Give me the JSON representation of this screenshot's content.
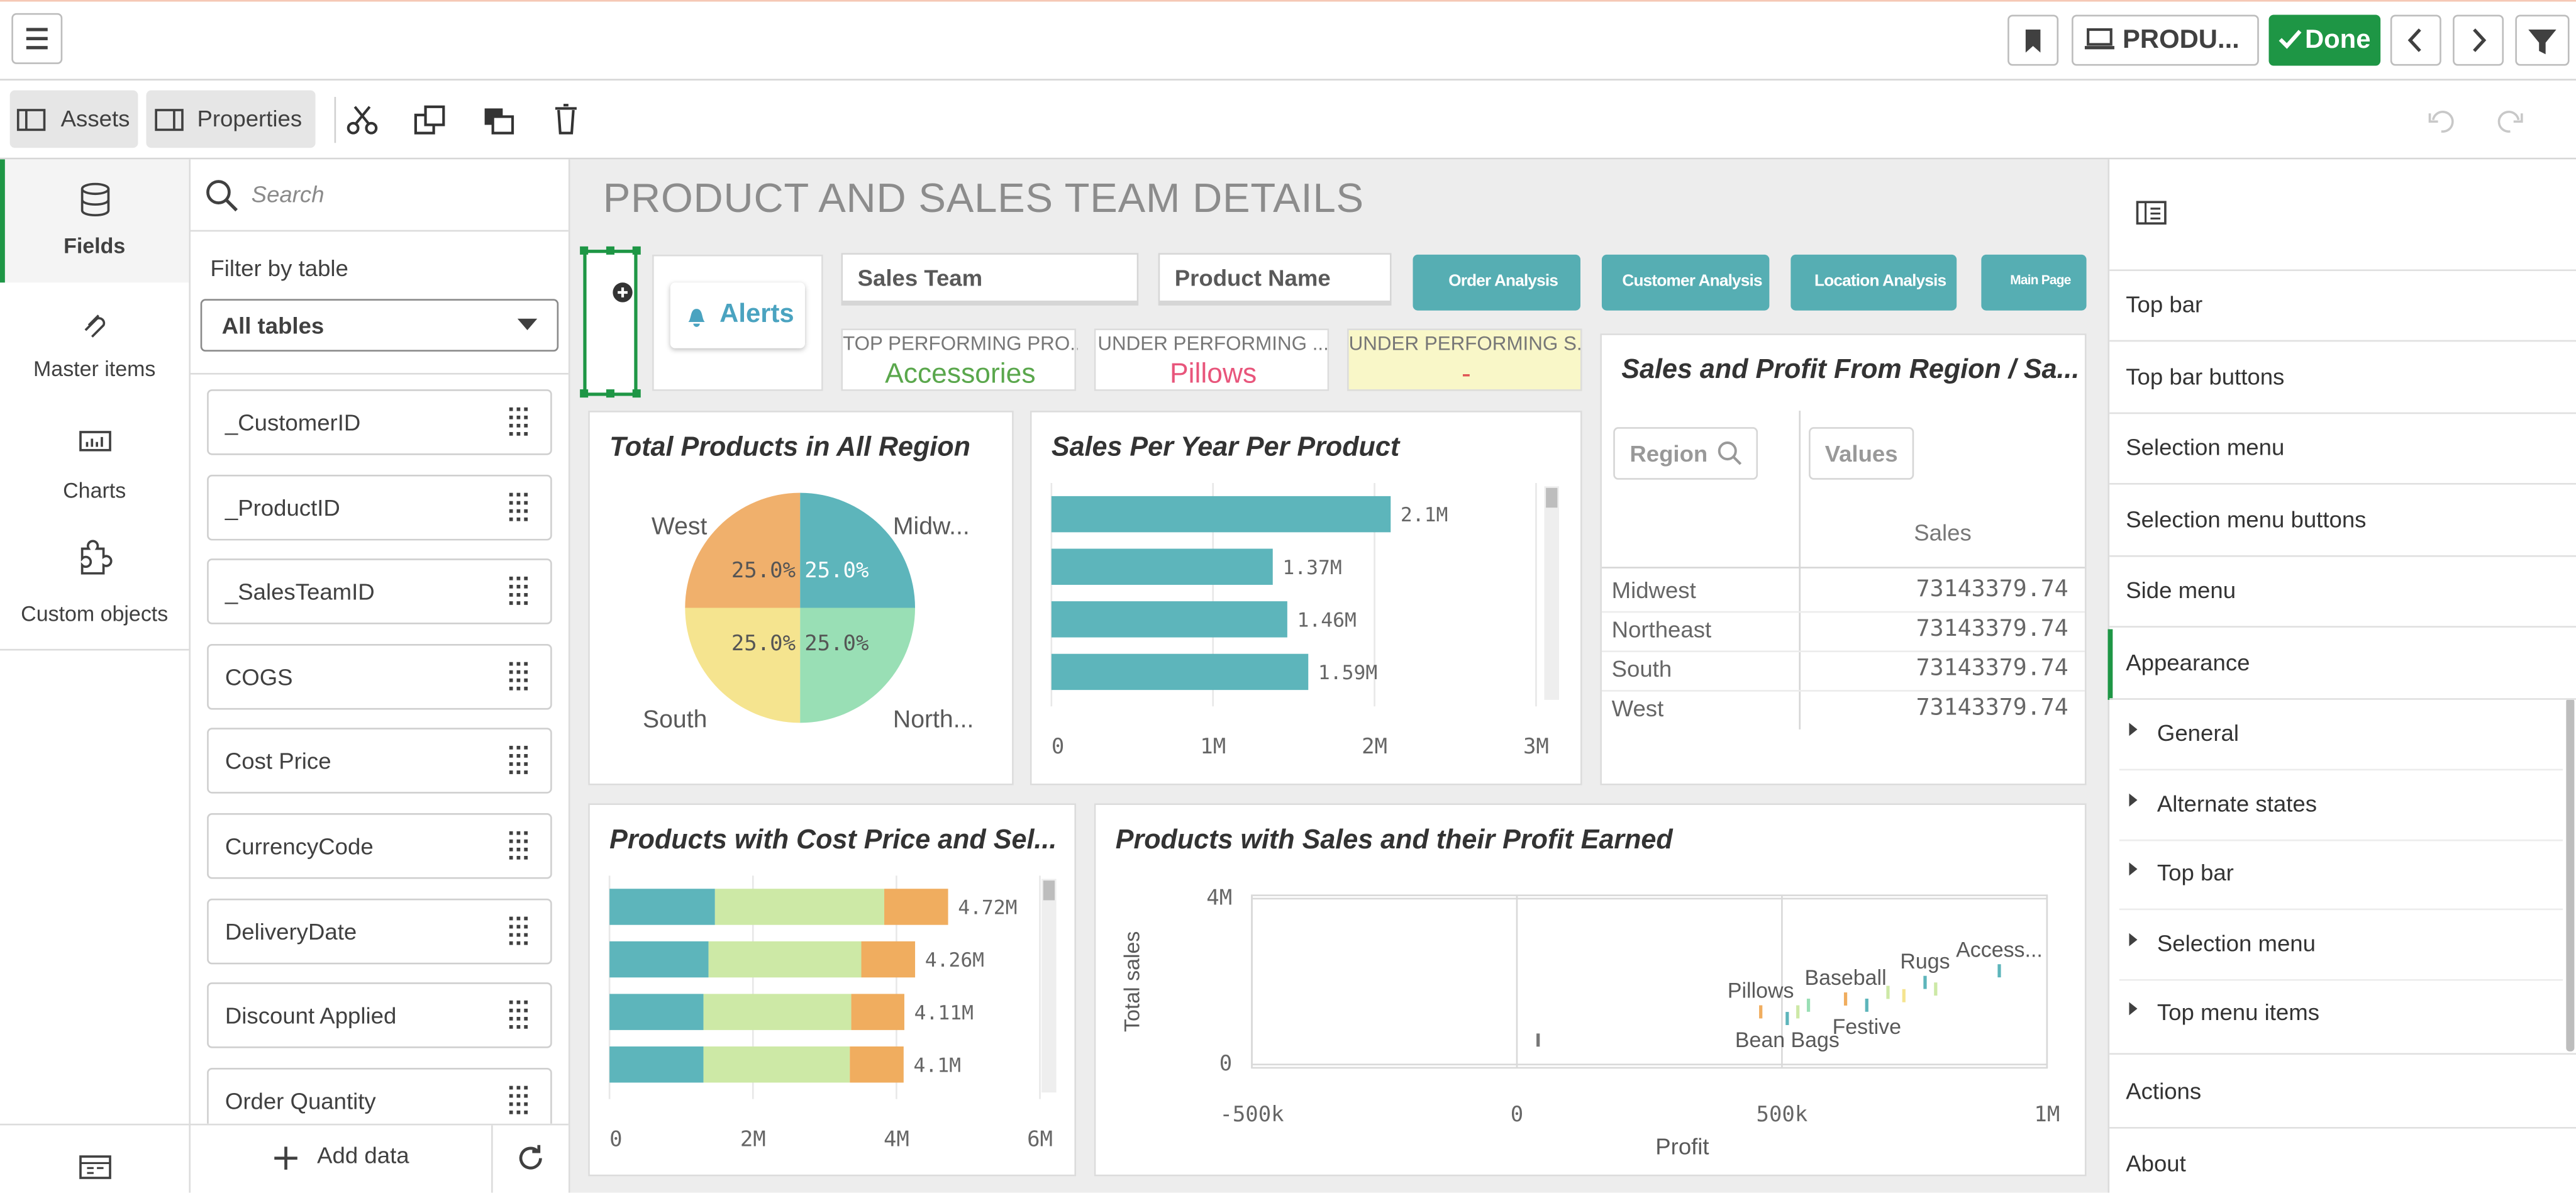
{
  "top_bar": {
    "sheet_button": "PRODU...",
    "done_button": "Done"
  },
  "edit_bar": {
    "assets": "Assets",
    "properties": "Properties"
  },
  "left_nav": {
    "items": [
      "Fields",
      "Master items",
      "Charts",
      "Custom objects"
    ]
  },
  "fields_panel": {
    "search_placeholder": "Search",
    "filter_label": "Filter by table",
    "filter_value": "All tables",
    "fields": [
      "_CustomerID",
      "_ProductID",
      "_SalesTeamID",
      "COGS",
      "Cost Price",
      "CurrencyCode",
      "DeliveryDate",
      "Discount Applied",
      "Order Quantity"
    ],
    "add_data": "Add data"
  },
  "sheet": {
    "title": "PRODUCT AND SALES TEAM DETAILS",
    "alerts": "Alerts",
    "filters": [
      "Sales Team",
      "Product Name"
    ],
    "nav_buttons": [
      "Order Analysis",
      "Customer Analysis",
      "Location Analysis",
      "Main Page"
    ],
    "kpis": [
      {
        "label": "TOP PERFORMING PRO...",
        "value": "Accessories",
        "color": "#5aa74c"
      },
      {
        "label": "UNDER PERFORMING ...",
        "value": "Pillows",
        "color": "#e8557b"
      },
      {
        "label": "UNDER PERFORMING S...",
        "value": "-",
        "color": "#e05555"
      }
    ],
    "charts": [
      {
        "type": "pie",
        "title": "Total Products in All Region",
        "categories": [
          "Midw...",
          "North...",
          "South",
          "West"
        ],
        "values": [
          25,
          25,
          25,
          25
        ],
        "value_labels": [
          "25.0%",
          "25.0%",
          "25.0%",
          "25.0%"
        ],
        "colors": [
          "#5db5bb",
          "#99dfb5",
          "#f5e48f",
          "#f0b06c"
        ]
      },
      {
        "type": "hbar",
        "title": "Sales Per Year Per Product",
        "values": [
          2100000,
          1370000,
          1460000,
          1590000
        ],
        "value_labels": [
          "2.1M",
          "1.37M",
          "1.46M",
          "1.59M"
        ],
        "color": "#5db5bb",
        "xlim": [
          0,
          3000000
        ],
        "xticks": [
          0,
          {
            "value": 1000000,
            "label": "1M"
          },
          {
            "value": 2000000,
            "label": "2M"
          },
          {
            "value": 3000000,
            "label": "3M"
          }
        ],
        "grid": true
      },
      {
        "type": "stacked_hbar",
        "title": "Products with Cost Price and Sel...",
        "series": [
          {
            "color": "#5db5bb",
            "values": [
              1470000,
              1380000,
              1310000,
              1310000
            ]
          },
          {
            "color": "#cde9a6",
            "values": [
              2360000,
              2130000,
              2060000,
              2040000
            ]
          },
          {
            "color": "#f0ad5f",
            "values": [
              890000,
              750000,
              740000,
              750000
            ]
          }
        ],
        "total_labels": [
          "4.72M",
          "4.26M",
          "4.11M",
          "4.1M"
        ],
        "xlim": [
          0,
          6000000
        ],
        "xticks": [
          0,
          {
            "value": 2000000,
            "label": "2M"
          },
          {
            "value": 4000000,
            "label": "4M"
          },
          {
            "value": 6000000,
            "label": "6M"
          }
        ],
        "grid": true
      },
      {
        "type": "scatter",
        "title": "Products with Sales and their Profit Earned",
        "x_label": "Profit",
        "y_label": "Total sales",
        "x": [
          40000,
          460000,
          510000,
          530000,
          550000,
          620000,
          660000,
          700000,
          730000,
          770000,
          790000,
          910000
        ],
        "y": [
          590000,
          1270000,
          1110000,
          1270000,
          1430000,
          1580000,
          1430000,
          1740000,
          1660000,
          1980000,
          1820000,
          2260000
        ],
        "labels": [
          null,
          "Pillows",
          "Bean Bags",
          null,
          null,
          "Baseball",
          "Festive",
          null,
          null,
          "Rugs",
          null,
          "Access..."
        ],
        "colors": [
          "#777777",
          "#f0ad5f",
          "#5db5bb",
          "#cde9a6",
          "#99dfb5",
          "#f0ad5f",
          "#5db5bb",
          "#cde9a6",
          "#f5e48f",
          "#5db5bb",
          "#cde9a6",
          "#5db5bb"
        ],
        "xlim": [
          -500000,
          1000000
        ],
        "ylim": [
          0,
          4000000
        ],
        "xticks": [
          {
            "value": -500000,
            "label": "-500k"
          },
          0,
          {
            "value": 500000,
            "label": "500k"
          },
          {
            "value": 1000000,
            "label": "1M"
          }
        ],
        "yticks": [
          0,
          {
            "value": 4000000,
            "label": "4M"
          }
        ],
        "grid": true
      }
    ],
    "table": {
      "title": "Sales and Profit From Region / Sa...",
      "dimension_header": "Region",
      "values_header": "Values",
      "measure_header": "Sales",
      "rows": [
        [
          "Midwest",
          73143379.74
        ],
        [
          "Northeast",
          73143379.74
        ],
        [
          "South",
          73143379.74
        ],
        [
          "West",
          73143379.74
        ]
      ]
    }
  },
  "properties_panel": {
    "sections": [
      "Top bar",
      "Top bar buttons",
      "Selection menu",
      "Selection menu buttons",
      "Side menu",
      "Appearance"
    ],
    "appearance_items": [
      "General",
      "Alternate states",
      "Top bar",
      "Selection menu",
      "Top menu items"
    ],
    "footer_items": [
      "Actions",
      "About"
    ]
  }
}
